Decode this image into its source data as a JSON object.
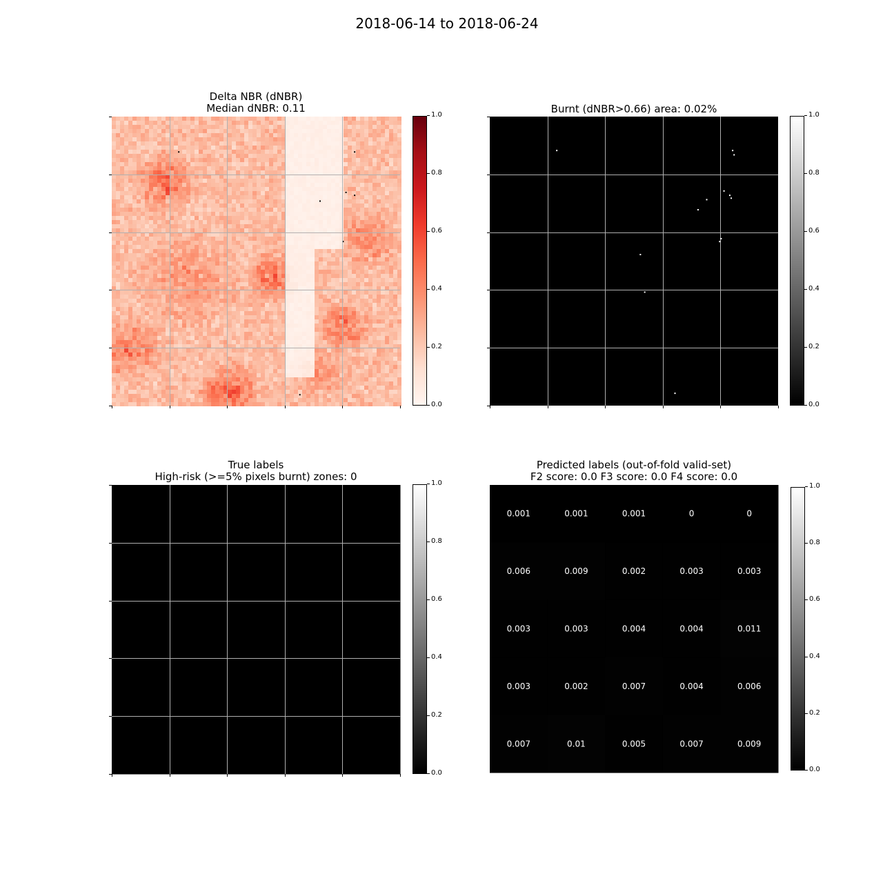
{
  "figure": {
    "suptitle": "2018-06-14 to 2018-06-24"
  },
  "colors": {
    "reds_low": "#fff5f0",
    "reds_high": "#67000d",
    "grid": "#b0b0b0",
    "background": "#ffffff"
  },
  "chart_data": [
    {
      "type": "heatmap",
      "panel": "dnbr",
      "title_line1": "Delta NBR (dNBR)",
      "title_line2": "Median dNBR: 0.11",
      "colormap": "Reds",
      "colorbar": {
        "range": [
          0.0,
          1.0
        ],
        "ticks": [
          "0.0",
          "0.2",
          "0.4",
          "0.6",
          "0.8",
          "1.0"
        ]
      },
      "grid": true
    },
    {
      "type": "heatmap",
      "panel": "burnt",
      "title": "Burnt (dNBR>0.66) area: 0.02%",
      "colormap": "gray",
      "colorbar": {
        "range": [
          0.0,
          1.0
        ],
        "ticks": [
          "0.0",
          "0.2",
          "0.4",
          "0.6",
          "0.8",
          "1.0"
        ]
      },
      "grid": true
    },
    {
      "type": "heatmap",
      "panel": "true",
      "title_line1": "True labels",
      "title_line2": "High-risk (>=5% pixels burnt) zones: 0",
      "colormap": "gray",
      "values": [
        [
          0,
          0,
          0,
          0,
          0
        ],
        [
          0,
          0,
          0,
          0,
          0
        ],
        [
          0,
          0,
          0,
          0,
          0
        ],
        [
          0,
          0,
          0,
          0,
          0
        ],
        [
          0,
          0,
          0,
          0,
          0
        ]
      ],
      "colorbar": {
        "range": [
          0.0,
          1.0
        ],
        "ticks": [
          "0.0",
          "0.2",
          "0.4",
          "0.6",
          "0.8",
          "1.0"
        ]
      },
      "grid": true
    },
    {
      "type": "heatmap",
      "panel": "pred",
      "title_line1": "Predicted labels (out-of-fold valid-set)",
      "title_line2": "F2 score: 0.0 F3 score: 0.0 F4 score: 0.0",
      "colormap": "gray",
      "values": [
        [
          "0.001",
          "0.001",
          "0.001",
          "0",
          "0"
        ],
        [
          "0.006",
          "0.009",
          "0.002",
          "0.003",
          "0.003"
        ],
        [
          "0.003",
          "0.003",
          "0.004",
          "0.004",
          "0.011"
        ],
        [
          "0.003",
          "0.002",
          "0.007",
          "0.004",
          "0.006"
        ],
        [
          "0.007",
          "0.01",
          "0.005",
          "0.007",
          "0.009"
        ]
      ],
      "colorbar": {
        "range": [
          0.0,
          1.0
        ],
        "ticks": [
          "0.0",
          "0.2",
          "0.4",
          "0.6",
          "0.8",
          "1.0"
        ]
      },
      "grid": false
    }
  ]
}
